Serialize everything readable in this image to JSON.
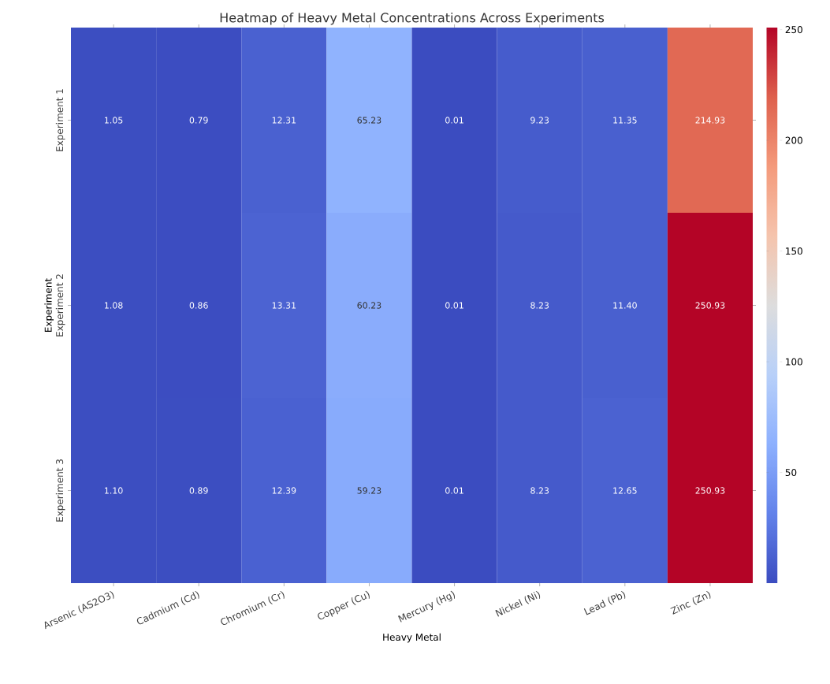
{
  "chart_data": {
    "type": "heatmap",
    "title": "Heatmap of Heavy Metal Concentrations Across Experiments",
    "xlabel": "Heavy Metal",
    "ylabel": "Experiment",
    "categories": [
      "Arsenic (AS2O3)",
      "Cadmium (Cd)",
      "Chromium (Cr)",
      "Copper (Cu)",
      "Mercury (Hg)",
      "Nickel (Ni)",
      "Lead (Pb)",
      "Zinc (Zn)"
    ],
    "y_categories": [
      "Experiment 1",
      "Experiment 2",
      "Experiment 3"
    ],
    "cells": [
      [
        1.05,
        0.79,
        12.31,
        65.23,
        0.01,
        9.23,
        11.35,
        214.93
      ],
      [
        1.08,
        0.86,
        13.31,
        60.23,
        0.01,
        8.23,
        11.4,
        250.93
      ],
      [
        1.1,
        0.89,
        12.39,
        59.23,
        0.01,
        8.23,
        12.65,
        250.93
      ]
    ],
    "cell_labels": [
      [
        "1.05",
        "0.79",
        "12.31",
        "65.23",
        "0.01",
        "9.23",
        "11.35",
        "214.93"
      ],
      [
        "1.08",
        "0.86",
        "13.31",
        "60.23",
        "0.01",
        "8.23",
        "11.40",
        "250.93"
      ],
      [
        "1.10",
        "0.89",
        "12.39",
        "59.23",
        "0.01",
        "8.23",
        "12.65",
        "250.93"
      ]
    ],
    "clim": [
      0.01,
      250.93
    ],
    "cticks": [
      50,
      100,
      150,
      200,
      250
    ]
  }
}
